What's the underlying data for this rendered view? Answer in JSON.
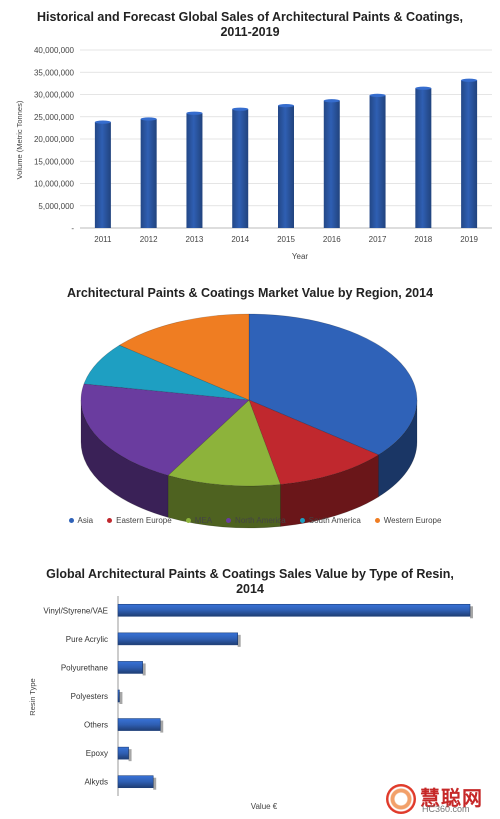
{
  "chart_data": [
    {
      "type": "bar",
      "title": "Historical and Forecast Global Sales of Architectural Paints & Coatings, 2011-2019",
      "title_line1": "Historical and Forecast Global Sales of Architectural Paints & Coatings,",
      "title_line2": "2011-2019",
      "xlabel": "Year",
      "ylabel": "Volume (Metric Tonnes)",
      "categories": [
        "2011",
        "2012",
        "2013",
        "2014",
        "2015",
        "2016",
        "2017",
        "2018",
        "2019"
      ],
      "values": [
        23800000,
        24500000,
        25800000,
        26700000,
        27500000,
        28600000,
        29800000,
        31400000,
        33200000
      ],
      "ylim": [
        0,
        40000000
      ],
      "yticks": [
        "-",
        "5,000,000",
        "10,000,000",
        "15,000,000",
        "20,000,000",
        "25,000,000",
        "30,000,000",
        "35,000,000",
        "40,000,000"
      ],
      "grid": true,
      "bar_color": "#2f5fb3"
    },
    {
      "type": "pie",
      "title": "Architectural Paints & Coatings Market Value by Region, 2014",
      "labels": [
        "Asia",
        "Eastern Europe",
        "MEA",
        "North America",
        "South America",
        "Western Europe"
      ],
      "values": [
        36,
        11,
        11,
        20,
        8,
        14
      ],
      "colors": [
        "#2f62b8",
        "#c0282e",
        "#8db33b",
        "#6a3c9f",
        "#1e9fc2",
        "#ef7d22"
      ],
      "legend_position": "bottom",
      "three_d": true
    },
    {
      "type": "bar",
      "orientation": "horizontal",
      "title": "Global Architectural Paints & Coatings Sales Value by Type of Resin, 2014",
      "title_line1": "Global Architectural Paints & Coatings Sales Value by Type of Resin,",
      "title_line2": "2014",
      "xlabel": "Value €",
      "ylabel": "Resin Type",
      "categories": [
        "Vinyl/Styrene/VAE",
        "Pure Acrylic",
        "Polyurethane",
        "Polyesters",
        "Others",
        "Epoxy",
        "Alkyds"
      ],
      "values": [
        100,
        34,
        7,
        0.4,
        12,
        3,
        10
      ],
      "bar_color": "#2f5fb3"
    }
  ],
  "watermark": {
    "brand": "慧聪网",
    "domain": "HC360.com"
  }
}
